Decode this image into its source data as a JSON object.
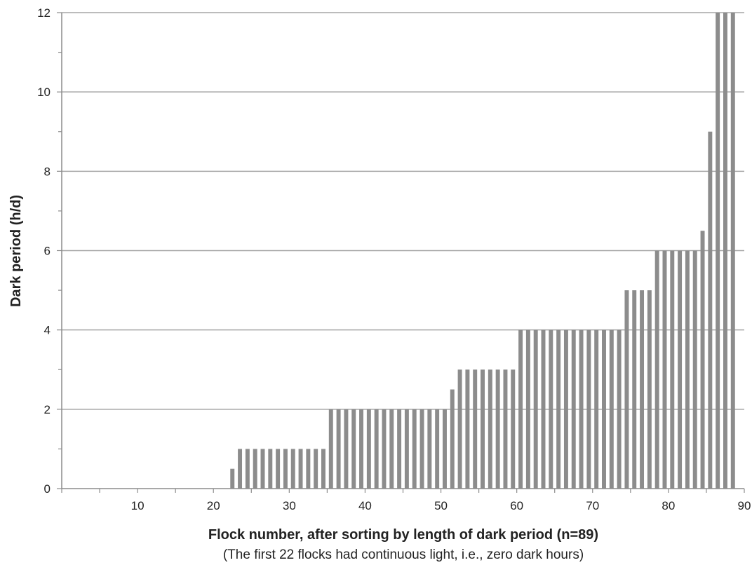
{
  "chart_data": {
    "type": "bar",
    "xlabel": "Flock number, after sorting by length of dark period (n=89)",
    "xlabel_note": "(The first 22 flocks had continuous light, i.e., zero dark hours)",
    "ylabel": "Dark period (h/d)",
    "xlim": [
      0,
      90
    ],
    "ylim": [
      0,
      12
    ],
    "x_ticks": [
      10,
      20,
      30,
      40,
      50,
      60,
      70,
      80,
      90
    ],
    "x_tick_labels": [
      "10",
      "20",
      "30",
      "40",
      "50",
      "60",
      "70",
      "80",
      "90"
    ],
    "y_ticks": [
      0,
      2,
      4,
      6,
      8,
      10,
      12
    ],
    "y_tick_labels": [
      "0",
      "2",
      "4",
      "6",
      "8",
      "10",
      "12"
    ],
    "grid": "horizontal",
    "bar_color": "#8c8c8c",
    "grid_color": "#a6a6a6",
    "x": [
      1,
      2,
      3,
      4,
      5,
      6,
      7,
      8,
      9,
      10,
      11,
      12,
      13,
      14,
      15,
      16,
      17,
      18,
      19,
      20,
      21,
      22,
      23,
      24,
      25,
      26,
      27,
      28,
      29,
      30,
      31,
      32,
      33,
      34,
      35,
      36,
      37,
      38,
      39,
      40,
      41,
      42,
      43,
      44,
      45,
      46,
      47,
      48,
      49,
      50,
      51,
      52,
      53,
      54,
      55,
      56,
      57,
      58,
      59,
      60,
      61,
      62,
      63,
      64,
      65,
      66,
      67,
      68,
      69,
      70,
      71,
      72,
      73,
      74,
      75,
      76,
      77,
      78,
      79,
      80,
      81,
      82,
      83,
      84,
      85,
      86,
      87,
      88,
      89
    ],
    "values": [
      0,
      0,
      0,
      0,
      0,
      0,
      0,
      0,
      0,
      0,
      0,
      0,
      0,
      0,
      0,
      0,
      0,
      0,
      0,
      0,
      0,
      0,
      0.5,
      1,
      1,
      1,
      1,
      1,
      1,
      1,
      1,
      1,
      1,
      1,
      1,
      2,
      2,
      2,
      2,
      2,
      2,
      2,
      2,
      2,
      2,
      2,
      2,
      2,
      2,
      2,
      2,
      2.5,
      3,
      3,
      3,
      3,
      3,
      3,
      3,
      3,
      4,
      4,
      4,
      4,
      4,
      4,
      4,
      4,
      4,
      4,
      4,
      4,
      4,
      4,
      5,
      5,
      5,
      5,
      6,
      6,
      6,
      6,
      6,
      6,
      6.5,
      9,
      12,
      12,
      12
    ]
  }
}
